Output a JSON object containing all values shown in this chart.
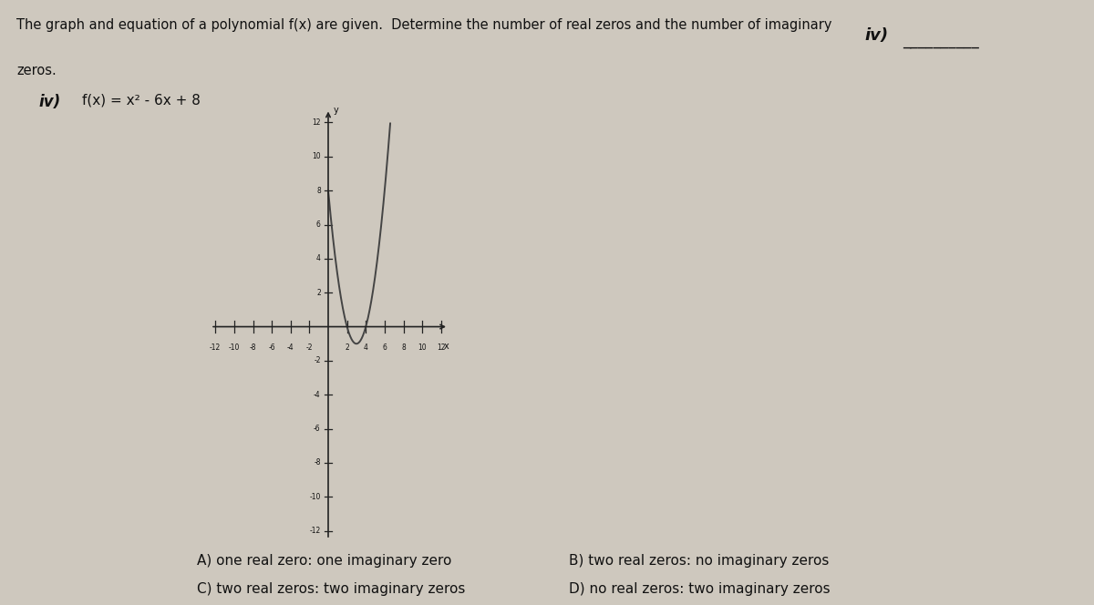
{
  "title_line1": "The graph and equation of a polynomial f(x) are given.  Determine the number of real zeros and the number of imaginary",
  "title_line2": "zeros.",
  "problem_label": "iv)",
  "equation": "f(x) = x² - 6x + 8",
  "answer_label": "iv)",
  "x_min": -12,
  "x_max": 12,
  "y_min": -12,
  "y_max": 12,
  "x_ticks": [
    -12,
    -10,
    -8,
    -6,
    -4,
    -2,
    2,
    4,
    6,
    8,
    10,
    12
  ],
  "y_ticks": [
    -12,
    -10,
    -8,
    -6,
    -4,
    -2,
    2,
    4,
    6,
    8,
    10,
    12
  ],
  "curve_color": "#444444",
  "axis_color": "#222222",
  "background_color": "#cec8be",
  "answer_choices": {
    "A": "A) one real zero: one imaginary zero",
    "B": "B) two real zeros: no imaginary zeros",
    "C": "C) two real zeros: two imaginary zeros",
    "D": "D) no real zeros: two imaginary zeros"
  },
  "text_color": "#111111",
  "font_size_title": 10.5,
  "font_size_eq": 11,
  "font_size_choices": 11
}
